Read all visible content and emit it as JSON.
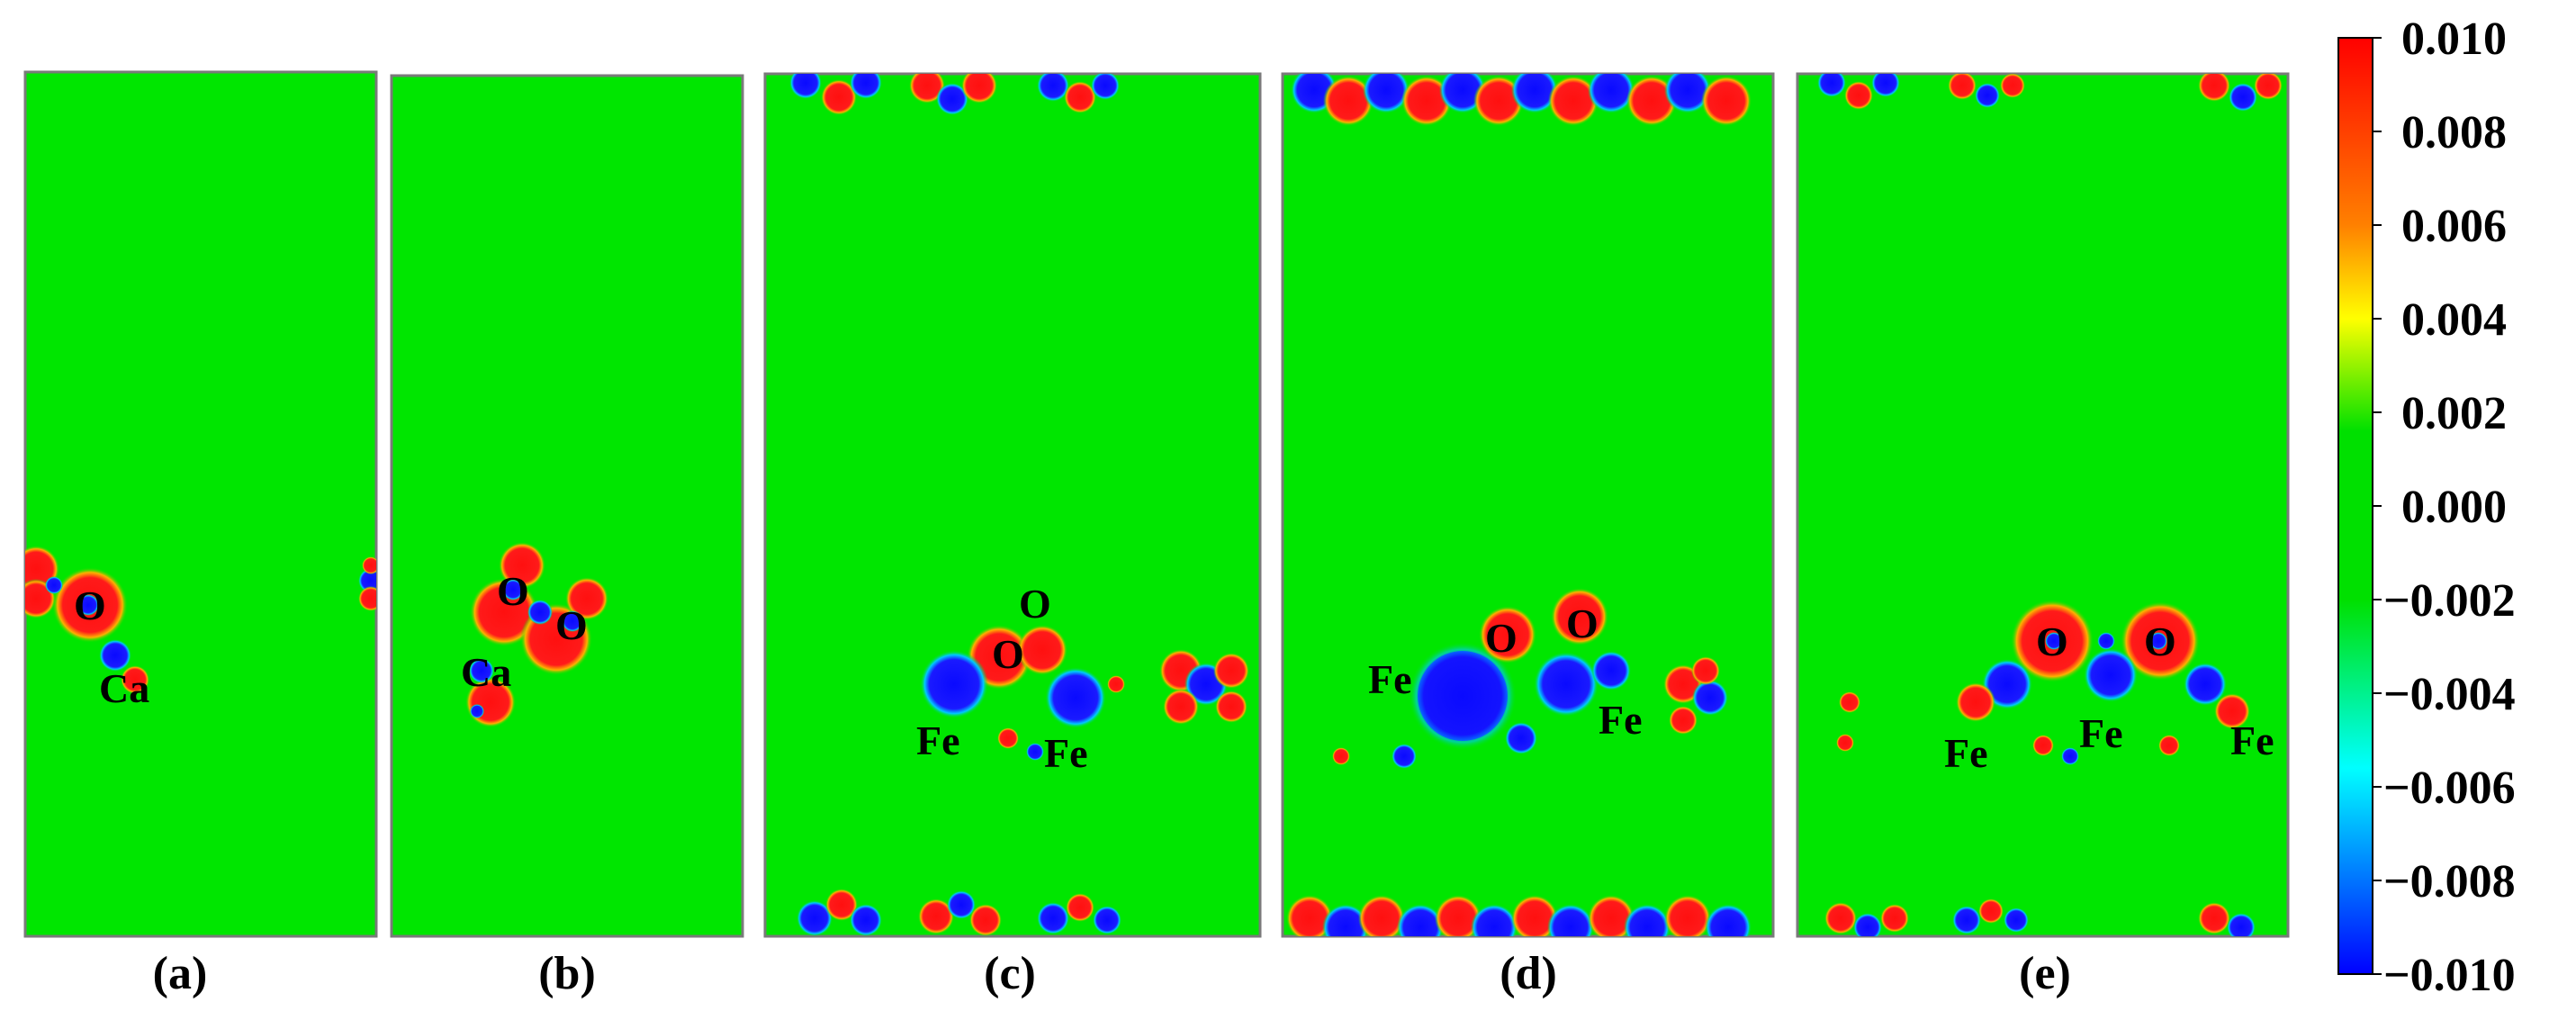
{
  "panels": [
    {
      "caption": "(a)",
      "atom_labels": [
        "O",
        "Ca"
      ]
    },
    {
      "caption": "(b)",
      "atom_labels": [
        "O",
        "O",
        "Ca"
      ]
    },
    {
      "caption": "(c)",
      "atom_labels": [
        "O",
        "O",
        "Fe",
        "Fe"
      ]
    },
    {
      "caption": "(d)",
      "atom_labels": [
        "Fe",
        "O",
        "O",
        "Fe"
      ]
    },
    {
      "caption": "(e)",
      "atom_labels": [
        "O",
        "O",
        "Fe",
        "Fe",
        "Fe"
      ]
    }
  ],
  "colorbar": {
    "ticks": [
      "0.010",
      "0.008",
      "0.006",
      "0.004",
      "0.002",
      "0.000",
      "−0.002",
      "−0.004",
      "−0.006",
      "−0.008",
      "−0.010"
    ],
    "colors": [
      "#ff0000",
      "#ff8000",
      "#ffff00",
      "#00e000",
      "#00ffff",
      "#0000ff"
    ]
  },
  "colors": {
    "background_field": "#00e600",
    "positive": "#ff1a1a",
    "negative": "#1a1aff",
    "mid_positive": "#ffc800",
    "mid_negative": "#00c8ff"
  }
}
